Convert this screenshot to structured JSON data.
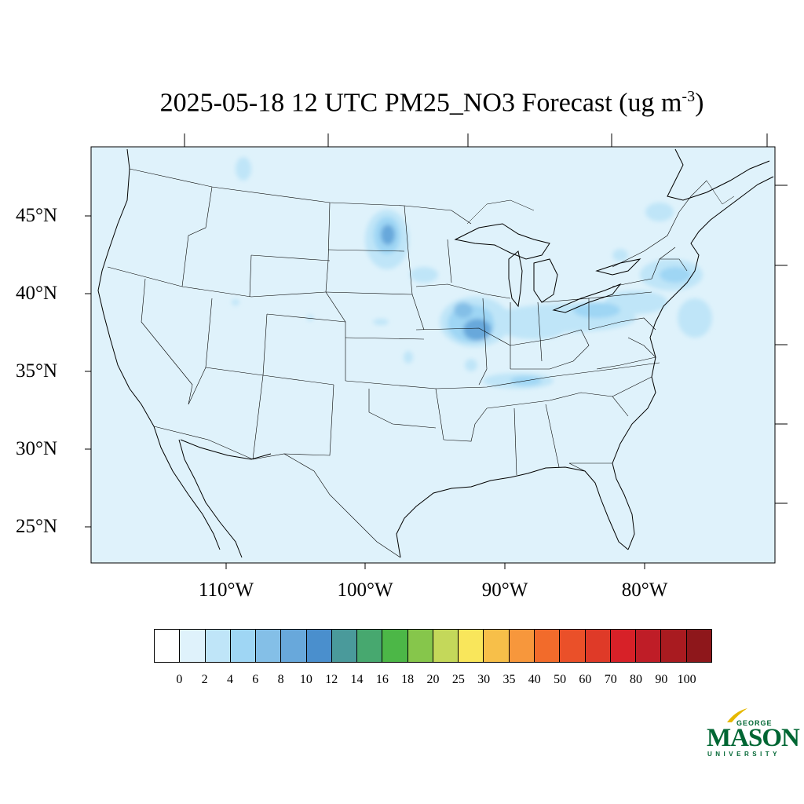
{
  "title": {
    "main": "2025-05-18 12 UTC PM25_NO3 Forecast (ug m",
    "superscript": "-3",
    "close": ")"
  },
  "lat_labels": [
    "45°N",
    "40°N",
    "35°N",
    "30°N",
    "25°N"
  ],
  "lon_labels": [
    "110°W",
    "100°W",
    "90°W",
    "80°W"
  ],
  "colorbar": {
    "labels": [
      "0",
      "2",
      "4",
      "6",
      "8",
      "10",
      "12",
      "14",
      "16",
      "18",
      "20",
      "25",
      "30",
      "35",
      "40",
      "50",
      "60",
      "70",
      "80",
      "90",
      "100"
    ],
    "colors": [
      "#ffffff",
      "#dff2fb",
      "#bfe5f8",
      "#9fd6f4",
      "#84bfe7",
      "#68a8db",
      "#4a8fcd",
      "#4a9a9b",
      "#47a86f",
      "#4cb747",
      "#86c64b",
      "#c4d85a",
      "#f9e65b",
      "#f7bf49",
      "#f7973c",
      "#f26b2b",
      "#ea5029",
      "#df3a28",
      "#d72128",
      "#bf1d27",
      "#a91b20",
      "#8e171b"
    ]
  },
  "map": {
    "background_color": "#dff2fb",
    "plumes": [
      {
        "region": "eastern South Dakota",
        "max_level": "10"
      },
      {
        "region": "Iowa / Illinois",
        "max_level": "10"
      },
      {
        "region": "Indiana / Ohio / Pennsylvania",
        "max_level": "4"
      },
      {
        "region": "New York / New England",
        "max_level": "4"
      },
      {
        "region": "Tennessee",
        "max_level": "4"
      }
    ]
  },
  "logo": {
    "line1": "GEORGE",
    "line2": "MASON",
    "line3": "UNIVERSITY"
  }
}
